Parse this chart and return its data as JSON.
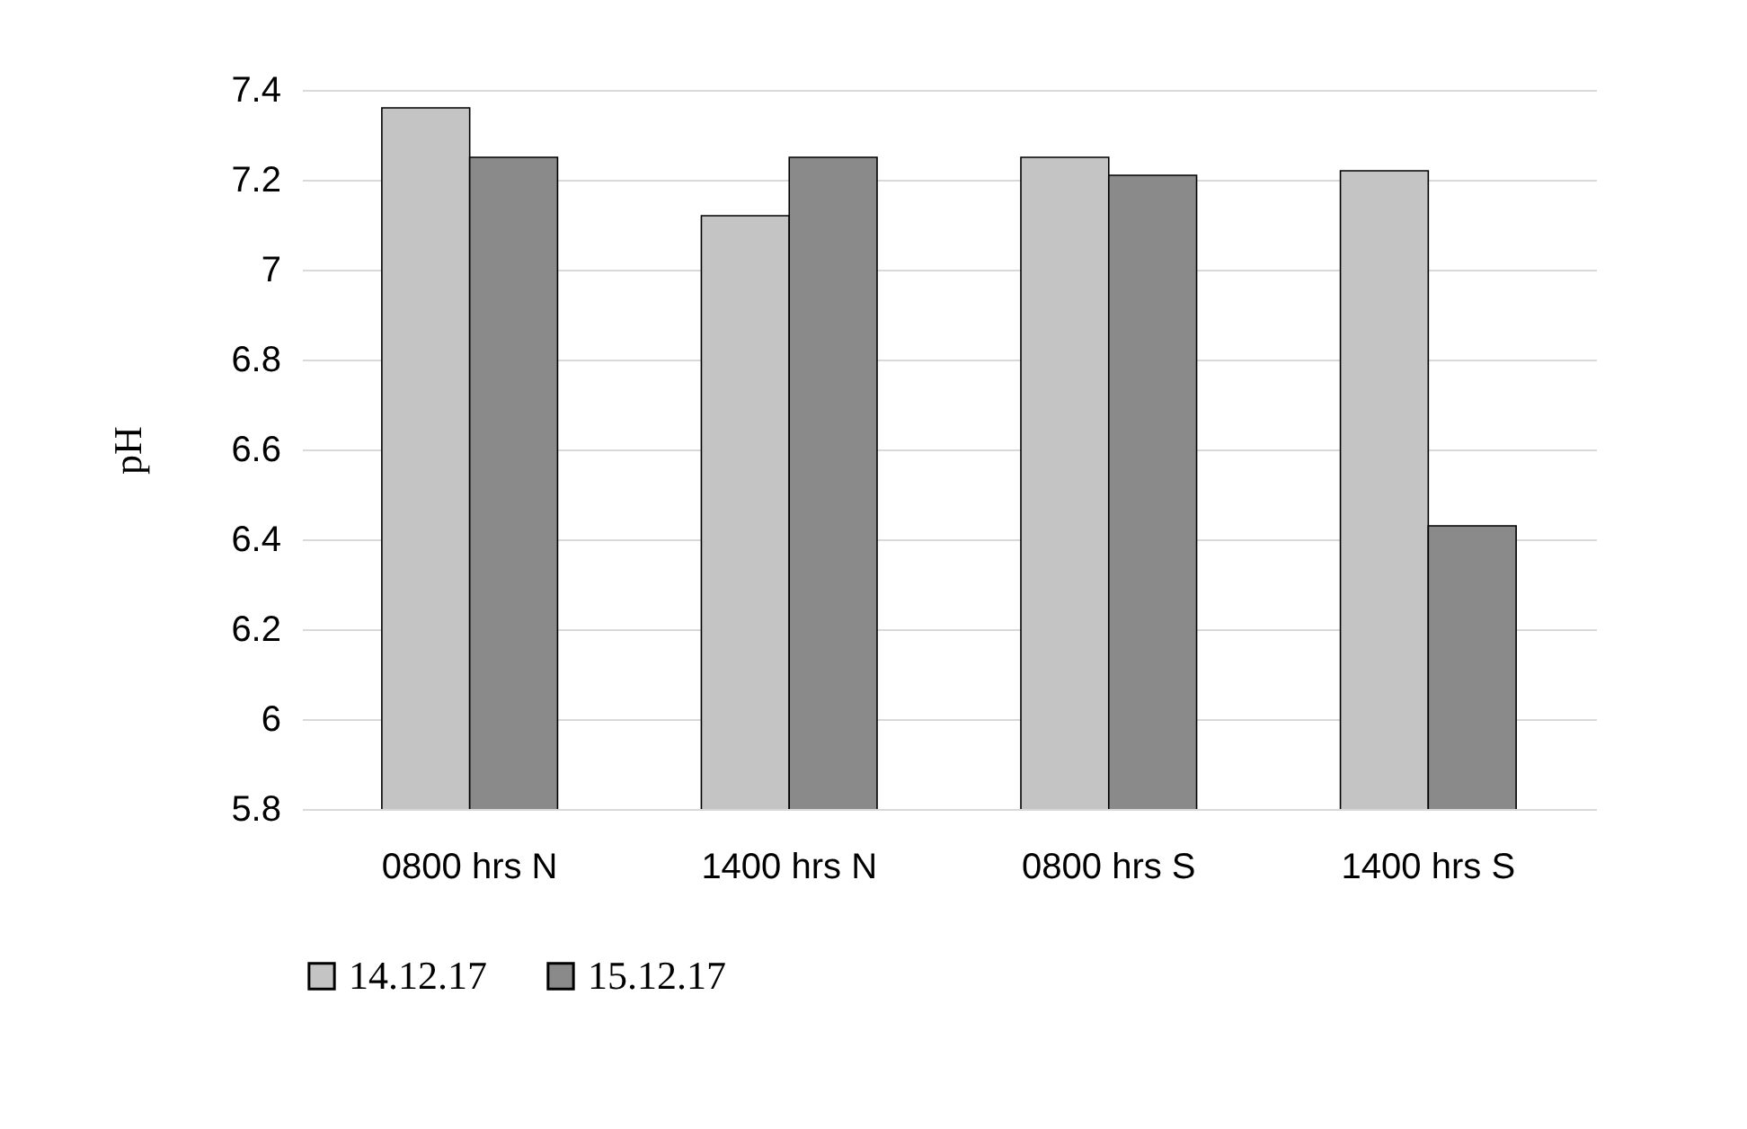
{
  "chart_data": {
    "type": "bar",
    "ylabel": "pH",
    "categories": [
      "0800 hrs N",
      "1400 hrs N",
      "0800 hrs S",
      "1400 hrs S"
    ],
    "series": [
      {
        "name": "14.12.17",
        "color": "#c4c4c4",
        "values": [
          7.36,
          7.12,
          7.25,
          7.22
        ]
      },
      {
        "name": "15.12.17",
        "color": "#8a8a8a",
        "values": [
          7.25,
          7.25,
          7.21,
          6.43
        ]
      }
    ],
    "ylim": [
      5.8,
      7.4
    ],
    "yticks": [
      5.8,
      6,
      6.2,
      6.4,
      6.6,
      6.8,
      7,
      7.2,
      7.4
    ],
    "grid": "y",
    "legend": "bottom"
  }
}
